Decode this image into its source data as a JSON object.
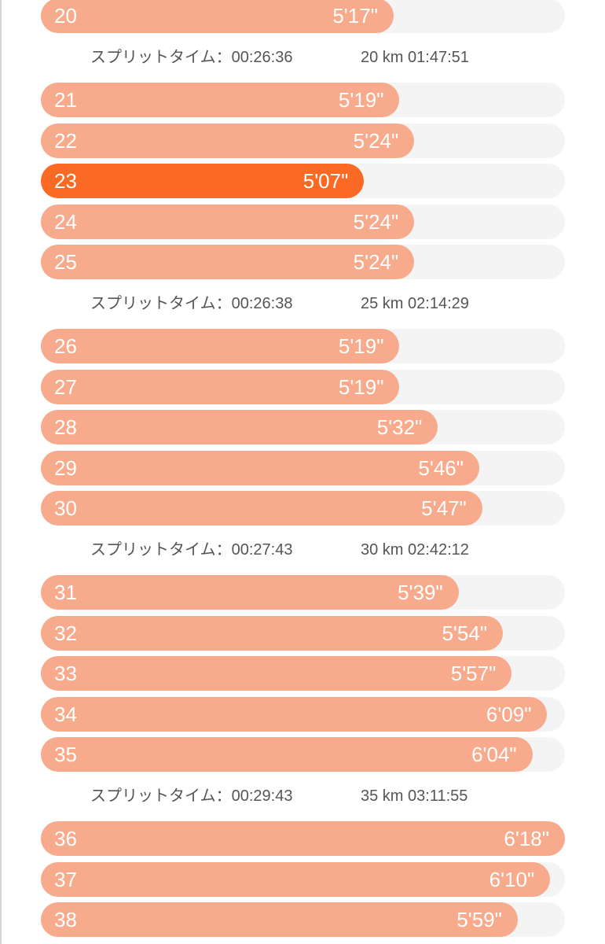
{
  "laps": [
    {
      "km": "20",
      "pace": "5'17\"",
      "seconds": 317
    },
    {
      "split_label": "スプリットタイム：00:26:36",
      "total": "20 km 01:47:51"
    },
    {
      "km": "21",
      "pace": "5'19\"",
      "seconds": 319
    },
    {
      "km": "22",
      "pace": "5'24\"",
      "seconds": 324
    },
    {
      "km": "23",
      "pace": "5'07\"",
      "seconds": 307,
      "best": true
    },
    {
      "km": "24",
      "pace": "5'24\"",
      "seconds": 324
    },
    {
      "km": "25",
      "pace": "5'24\"",
      "seconds": 324
    },
    {
      "split_label": "スプリットタイム：00:26:38",
      "total": "25 km 02:14:29"
    },
    {
      "km": "26",
      "pace": "5'19\"",
      "seconds": 319
    },
    {
      "km": "27",
      "pace": "5'19\"",
      "seconds": 319
    },
    {
      "km": "28",
      "pace": "5'32\"",
      "seconds": 332
    },
    {
      "km": "29",
      "pace": "5'46\"",
      "seconds": 346
    },
    {
      "km": "30",
      "pace": "5'47\"",
      "seconds": 347
    },
    {
      "split_label": "スプリットタイム：00:27:43",
      "total": "30 km 02:42:12"
    },
    {
      "km": "31",
      "pace": "5'39\"",
      "seconds": 339
    },
    {
      "km": "32",
      "pace": "5'54\"",
      "seconds": 354
    },
    {
      "km": "33",
      "pace": "5'57\"",
      "seconds": 357
    },
    {
      "km": "34",
      "pace": "6'09\"",
      "seconds": 369
    },
    {
      "km": "35",
      "pace": "6'04\"",
      "seconds": 364
    },
    {
      "split_label": "スプリットタイム：00:29:43",
      "total": "35 km 03:11:55"
    },
    {
      "km": "36",
      "pace": "6'18\"",
      "seconds": 378
    },
    {
      "km": "37",
      "pace": "6'10\"",
      "seconds": 370
    },
    {
      "km": "38",
      "pace": "5'59\"",
      "seconds": 359
    }
  ],
  "colors": {
    "bar": "#f7ab8c",
    "best_bar": "#fb6a24",
    "track": "#f4f4f4",
    "split_text": "#555555"
  }
}
